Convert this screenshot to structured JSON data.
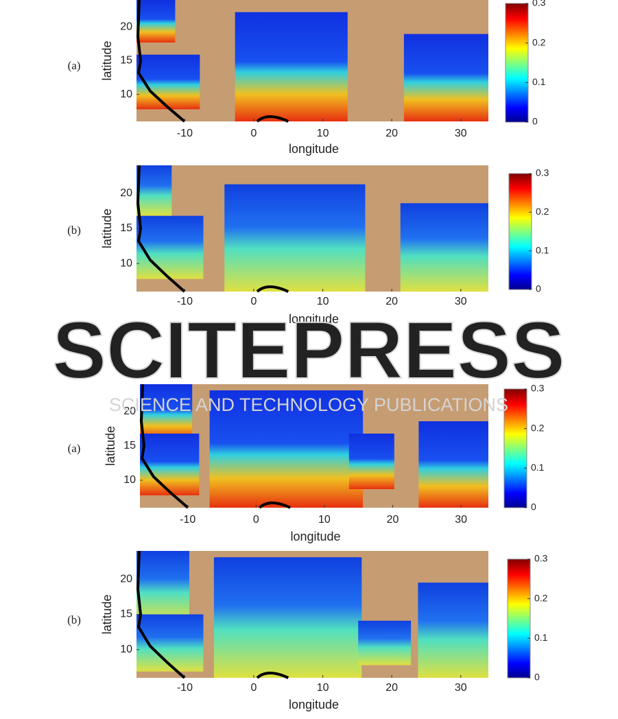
{
  "chart_data": [
    {
      "type": "heatmap",
      "panel_label": "(a)",
      "xlabel": "longitude",
      "ylabel": "latitude",
      "xlim": [
        -17,
        34
      ],
      "ylim": [
        6,
        24
      ],
      "xticks": [
        -10,
        0,
        10,
        20,
        30
      ],
      "yticks": [
        10,
        15,
        20
      ],
      "colorbar": {
        "colormap": "jet",
        "lim": [
          0,
          0.3
        ],
        "ticks": [
          0,
          0.1,
          0.2,
          0.3
        ]
      }
    },
    {
      "type": "heatmap",
      "panel_label": "(b)",
      "xlabel": "longitude",
      "ylabel": "latitude",
      "xlim": [
        -17,
        34
      ],
      "ylim": [
        6,
        24
      ],
      "xticks": [
        -10,
        0,
        10,
        20,
        30
      ],
      "yticks": [
        10,
        15,
        20
      ],
      "colorbar": {
        "colormap": "jet",
        "lim": [
          0,
          0.3
        ],
        "ticks": [
          0,
          0.1,
          0.2,
          0.3
        ]
      }
    },
    {
      "type": "heatmap",
      "panel_label": "(a)",
      "xlabel": "longitude",
      "ylabel": "latitude",
      "xlim": [
        -17,
        34
      ],
      "ylim": [
        6,
        24
      ],
      "xticks": [
        -10,
        0,
        10,
        20,
        30
      ],
      "yticks": [
        10,
        15,
        20
      ],
      "colorbar": {
        "colormap": "jet",
        "lim": [
          0,
          0.3
        ],
        "ticks": [
          0,
          0.1,
          0.2,
          0.3
        ]
      }
    },
    {
      "type": "heatmap",
      "panel_label": "(b)",
      "xlabel": "longitude",
      "ylabel": "latitude",
      "xlim": [
        -17,
        34
      ],
      "ylim": [
        6,
        24
      ],
      "xticks": [
        -10,
        0,
        10,
        20,
        30
      ],
      "yticks": [
        10,
        15,
        20
      ],
      "colorbar": {
        "colormap": "jet",
        "lim": [
          0,
          0.3
        ],
        "ticks": [
          0,
          0.1,
          0.2,
          0.3
        ]
      }
    }
  ],
  "watermark": {
    "title": "SCITEPRESS",
    "subtitle": "SCIENCE AND TECHNOLOGY PUBLICATIONS"
  }
}
